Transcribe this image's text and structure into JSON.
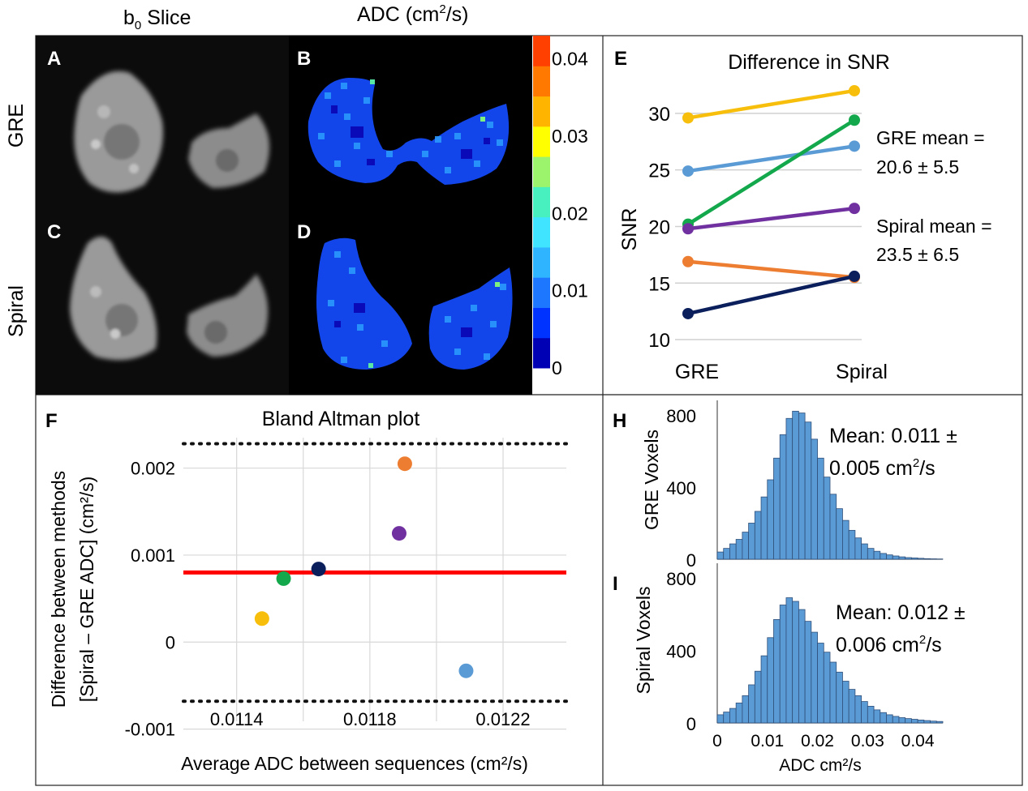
{
  "header": {
    "b0_title": "b",
    "b0_sub": "0",
    "b0_suffix": " Slice",
    "adc_title": "ADC (cm",
    "adc_sup": "2",
    "adc_suffix": "/s)"
  },
  "row_labels": {
    "gre": "GRE",
    "spiral": "Spiral"
  },
  "panel_letters": {
    "A": "A",
    "B": "B",
    "C": "C",
    "D": "D",
    "E": "E",
    "F": "F",
    "H": "H",
    "I": "I"
  },
  "colorbar": {
    "ticks": [
      "0.04",
      "0.03",
      "0.02",
      "0.01",
      "0"
    ],
    "tick_values": [
      0.04,
      0.03,
      0.02,
      0.01,
      0
    ],
    "min": 0,
    "max": 0.043,
    "colors": [
      "#0000b4",
      "#0033ff",
      "#1e78ff",
      "#2fb4ff",
      "#40e4ff",
      "#48f0c0",
      "#9cf46c",
      "#ffff00",
      "#ffb400",
      "#ff7800",
      "#ff4000"
    ]
  },
  "colors": {
    "yellow": "#f7bf0c",
    "lightblue": "#5b9bd5",
    "green": "#12a84b",
    "purple": "#7030a0",
    "orange": "#ed7d31",
    "navy": "#0a1f5c",
    "mean_line": "#ff0000",
    "hist_bar": "#5b9bd5"
  },
  "chart_data": [
    {
      "id": "E",
      "type": "line",
      "title": "Difference in SNR",
      "xlabel": "",
      "ylabel": "SNR",
      "categories": [
        "GRE",
        "Spiral"
      ],
      "ylim": [
        8.5,
        33
      ],
      "yticks": [
        10,
        15,
        20,
        25,
        30
      ],
      "grid": true,
      "series": [
        {
          "name": "yellow",
          "values": [
            29.6,
            32.0
          ]
        },
        {
          "name": "lightblue",
          "values": [
            24.9,
            27.1
          ]
        },
        {
          "name": "green",
          "values": [
            20.2,
            29.4
          ]
        },
        {
          "name": "purple",
          "values": [
            19.8,
            21.6
          ]
        },
        {
          "name": "orange",
          "values": [
            16.9,
            15.5
          ]
        },
        {
          "name": "navy",
          "values": [
            12.3,
            15.6
          ]
        }
      ],
      "annotations": [
        "GRE mean =",
        "20.6 ± 5.5",
        "Spiral mean =",
        "23.5 ± 6.5"
      ]
    },
    {
      "id": "F",
      "type": "scatter",
      "title": "Bland Altman plot",
      "xlabel": "Average ADC between sequences (cm²/s)",
      "ylabel_line1": "Difference between methods",
      "ylabel_line2": "[Spiral – GRE ADC] (cm²/s)",
      "xlim": [
        0.01124,
        0.01239
      ],
      "ylim": [
        -0.00105,
        0.00235
      ],
      "xticks": [
        0.0114,
        0.0118,
        0.0122
      ],
      "xtick_labels": [
        "0.0114",
        "0.0118",
        "0.0122"
      ],
      "yticks": [
        -0.001,
        0,
        0.001,
        0.002
      ],
      "ytick_labels": [
        "-0.001",
        "0",
        "0.001",
        "0.002"
      ],
      "grid": true,
      "mean_diff": 0.0008,
      "limits_of_agreement": [
        0.00228,
        -0.00068
      ],
      "points": [
        {
          "name": "yellow",
          "x": 0.011476,
          "y": 0.00027
        },
        {
          "name": "green",
          "x": 0.011541,
          "y": 0.00073
        },
        {
          "name": "navy",
          "x": 0.011646,
          "y": 0.00084
        },
        {
          "name": "purple",
          "x": 0.011888,
          "y": 0.00125
        },
        {
          "name": "orange",
          "x": 0.011905,
          "y": 0.00205
        },
        {
          "name": "lightblue",
          "x": 0.012089,
          "y": -0.00033
        }
      ]
    },
    {
      "id": "H",
      "type": "bar",
      "ylabel": "GRE Voxels",
      "ylim": [
        0,
        880
      ],
      "yticks": [
        0,
        400,
        800
      ],
      "xlim": [
        0,
        0.045
      ],
      "bin_width": 0.00125,
      "values": [
        40,
        60,
        85,
        110,
        150,
        200,
        265,
        345,
        440,
        560,
        690,
        780,
        820,
        810,
        760,
        665,
        560,
        455,
        360,
        280,
        215,
        160,
        118,
        85,
        60,
        44,
        32,
        24,
        18,
        13,
        9,
        7,
        5,
        3,
        2,
        1
      ],
      "annotation": [
        "Mean: 0.011 ±",
        "0.005 cm",
        "2",
        "/s"
      ]
    },
    {
      "id": "I",
      "type": "bar",
      "ylabel": "Spiral Voxels",
      "xlabel": "ADC cm²/s",
      "ylim": [
        0,
        880
      ],
      "yticks": [
        0,
        400,
        800
      ],
      "xlim": [
        0,
        0.045
      ],
      "xticks": [
        0,
        0.01,
        0.02,
        0.03,
        0.04
      ],
      "xtick_labels": [
        "0",
        "0.01",
        "0.02",
        "0.03",
        "0.04"
      ],
      "bin_width": 0.00125,
      "values": [
        45,
        60,
        80,
        110,
        150,
        210,
        285,
        370,
        470,
        570,
        650,
        690,
        670,
        625,
        560,
        500,
        440,
        390,
        335,
        280,
        230,
        185,
        150,
        118,
        92,
        72,
        57,
        45,
        36,
        29,
        24,
        20,
        16,
        13,
        10,
        8
      ],
      "annotation": [
        "Mean: 0.012 ±",
        "0.006 cm",
        "2",
        "/s"
      ]
    }
  ]
}
